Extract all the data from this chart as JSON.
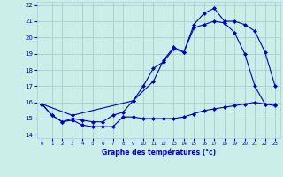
{
  "xlabel": "Graphe des températures (°c)",
  "background_color": "#cceee8",
  "grid_color": "#aacccc",
  "line_color": "#0000bb",
  "xlim": [
    -0.5,
    23.5
  ],
  "ylim": [
    13.8,
    22.2
  ],
  "yticks": [
    14,
    15,
    16,
    17,
    18,
    19,
    20,
    21,
    22
  ],
  "xticks": [
    0,
    1,
    2,
    3,
    4,
    5,
    6,
    7,
    8,
    9,
    10,
    11,
    12,
    13,
    14,
    15,
    16,
    17,
    18,
    19,
    20,
    21,
    22,
    23
  ],
  "line1_x": [
    0,
    1,
    2,
    3,
    4,
    5,
    6,
    7,
    8,
    9,
    10,
    11,
    12,
    13,
    14,
    15,
    16,
    17,
    18,
    19,
    20,
    21,
    22,
    23
  ],
  "line1_y": [
    15.9,
    15.2,
    14.8,
    14.9,
    14.6,
    14.5,
    14.5,
    14.5,
    15.1,
    15.1,
    15.0,
    15.0,
    15.0,
    15.0,
    15.1,
    15.3,
    15.5,
    15.6,
    15.7,
    15.8,
    15.9,
    16.0,
    15.9,
    15.9
  ],
  "line2_x": [
    0,
    1,
    2,
    3,
    4,
    5,
    6,
    7,
    8,
    9,
    10,
    11,
    12,
    13,
    14,
    15,
    16,
    17,
    18,
    19,
    20,
    21,
    22,
    23
  ],
  "line2_y": [
    15.9,
    15.2,
    14.8,
    15.0,
    14.9,
    14.8,
    14.8,
    15.2,
    15.4,
    16.1,
    17.0,
    18.1,
    18.5,
    19.3,
    19.1,
    20.6,
    20.8,
    21.0,
    20.9,
    20.3,
    19.0,
    17.0,
    15.9,
    15.8
  ],
  "line3_x": [
    0,
    3,
    9,
    11,
    12,
    13,
    14,
    15,
    16,
    17,
    18,
    19,
    20,
    21,
    22,
    23
  ],
  "line3_y": [
    15.9,
    15.2,
    16.1,
    17.3,
    18.6,
    19.4,
    19.1,
    20.8,
    21.5,
    21.8,
    21.0,
    21.0,
    20.8,
    20.4,
    19.1,
    17.0
  ]
}
